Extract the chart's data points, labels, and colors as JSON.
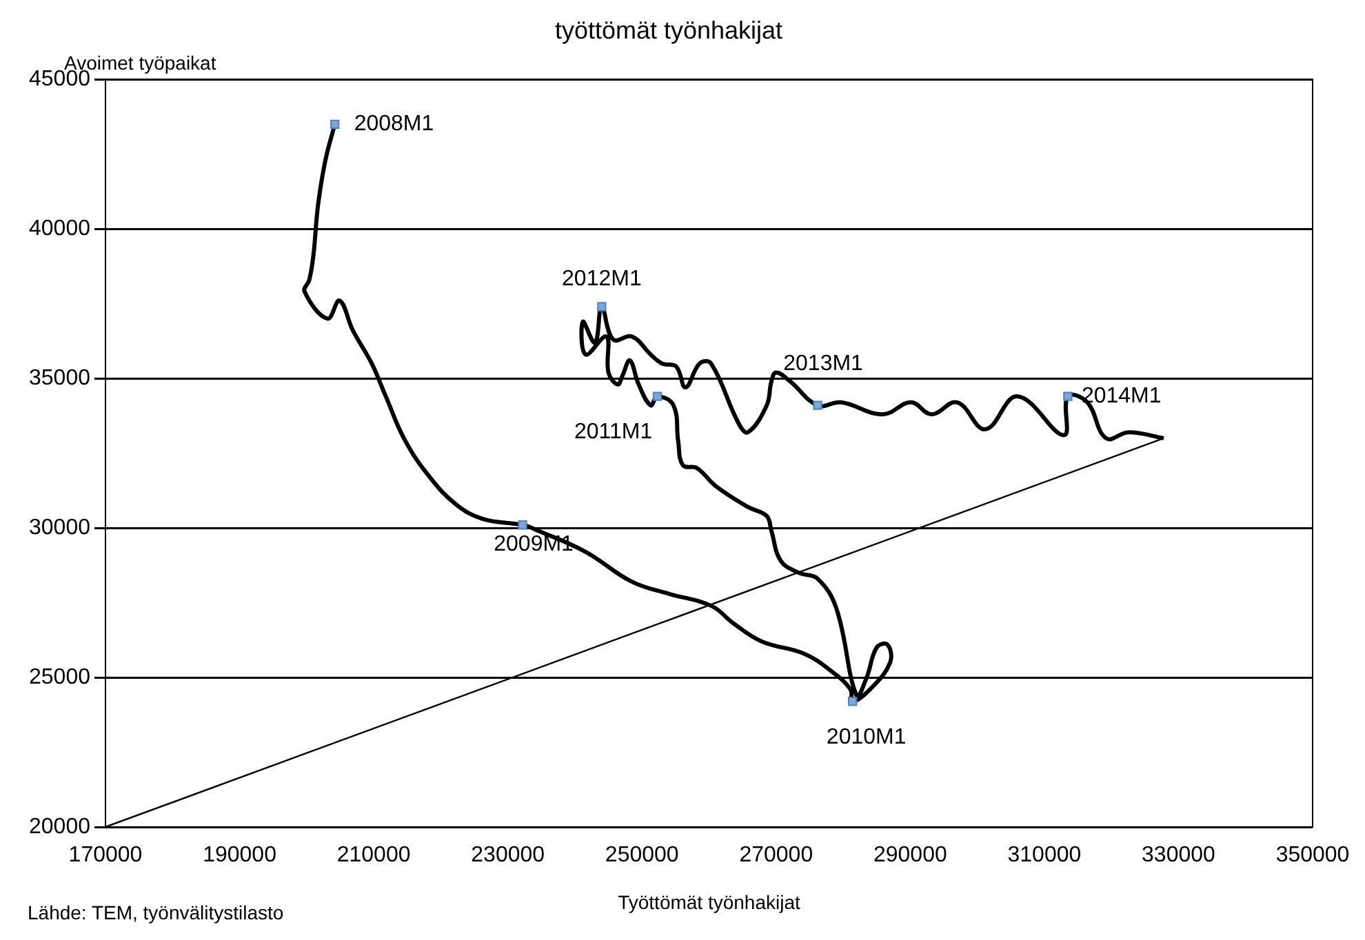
{
  "chart_data": {
    "type": "line",
    "title": "työttömät työnhakijat",
    "xlabel": "Työttömät työnhakijat",
    "ylabel": "Avoimet työpaikat",
    "xlim": [
      170000,
      350000
    ],
    "xticks": [
      170000,
      190000,
      210000,
      230000,
      250000,
      270000,
      290000,
      310000,
      330000,
      350000
    ],
    "ylim": [
      20000,
      45000
    ],
    "yticks": [
      20000,
      25000,
      30000,
      35000,
      40000,
      45000
    ],
    "grid": "y",
    "legend": false,
    "series": [
      {
        "color": "#000000",
        "marker": "none",
        "x": [
          204200,
          202800,
          201700,
          201000,
          200400,
          199700,
          203100,
          204900,
          206900,
          209700,
          211800,
          214500,
          218000,
          222200,
          226300,
          232200,
          234600,
          241600,
          248500,
          254000,
          260300,
          263700,
          267900,
          274100,
          278300,
          281100,
          281400,
          284000,
          287000,
          286600,
          285000,
          283500,
          282000,
          279000,
          276200,
          273400,
          270700,
          269300,
          268600,
          265800,
          261000,
          258200,
          256100,
          255400,
          254700,
          252300,
          251300,
          249500,
          248200,
          247100,
          246400,
          245000,
          244700,
          241600,
          241200,
          243000,
          244000,
          245700,
          248500,
          251300,
          253000,
          255100,
          256500,
          258600,
          260300,
          264400,
          265800,
          268600,
          269300,
          270000,
          272100,
          276200,
          279700,
          285900,
          290100,
          293200,
          297000,
          301200,
          306000,
          312900,
          313500,
          316400,
          319200,
          322600,
          327800
        ],
        "values": [
          43500,
          42300,
          40800,
          39100,
          38300,
          37900,
          37000,
          37600,
          36600,
          35500,
          34400,
          33000,
          31800,
          30800,
          30300,
          30100,
          29900,
          29200,
          28200,
          27800,
          27400,
          26800,
          26200,
          25800,
          25200,
          24600,
          24200,
          24600,
          25500,
          26100,
          26000,
          25000,
          24400,
          27300,
          28300,
          28500,
          28900,
          29900,
          30400,
          30700,
          31400,
          32000,
          32100,
          32900,
          34100,
          34400,
          34100,
          34800,
          35600,
          35100,
          34800,
          35200,
          36400,
          35800,
          36900,
          36200,
          37400,
          36300,
          36400,
          35800,
          35500,
          35400,
          34700,
          35500,
          35500,
          33500,
          33200,
          34100,
          34900,
          35200,
          34900,
          34100,
          34200,
          33800,
          34200,
          33800,
          34200,
          33300,
          34400,
          33100,
          34400,
          34200,
          33000,
          33200,
          33000
        ]
      },
      {
        "color": "#000000",
        "marker": "none",
        "x": [
          170000,
          327800
        ],
        "values": [
          20000,
          33000
        ]
      },
      {
        "type": "scatter",
        "color": "#7ba7d9",
        "marker": "square",
        "x": [
          204200,
          232200,
          281400,
          252300,
          244000,
          276200,
          313500
        ],
        "values": [
          43500,
          30100,
          24200,
          34400,
          37400,
          34100,
          34400
        ]
      }
    ],
    "annotations": [
      {
        "text": "2008M1",
        "x": 204200,
        "y": 43500
      },
      {
        "text": "2009M1",
        "x": 232200,
        "y": 30100
      },
      {
        "text": "2010M1",
        "x": 281400,
        "y": 24200
      },
      {
        "text": "2011M1",
        "x": 252300,
        "y": 34400
      },
      {
        "text": "2012M1",
        "x": 244000,
        "y": 37400
      },
      {
        "text": "2013M1",
        "x": 276200,
        "y": 34100
      },
      {
        "text": "2014M1",
        "x": 313500,
        "y": 34400
      },
      "Lähde: TEM, työnvälitystilasto"
    ]
  }
}
